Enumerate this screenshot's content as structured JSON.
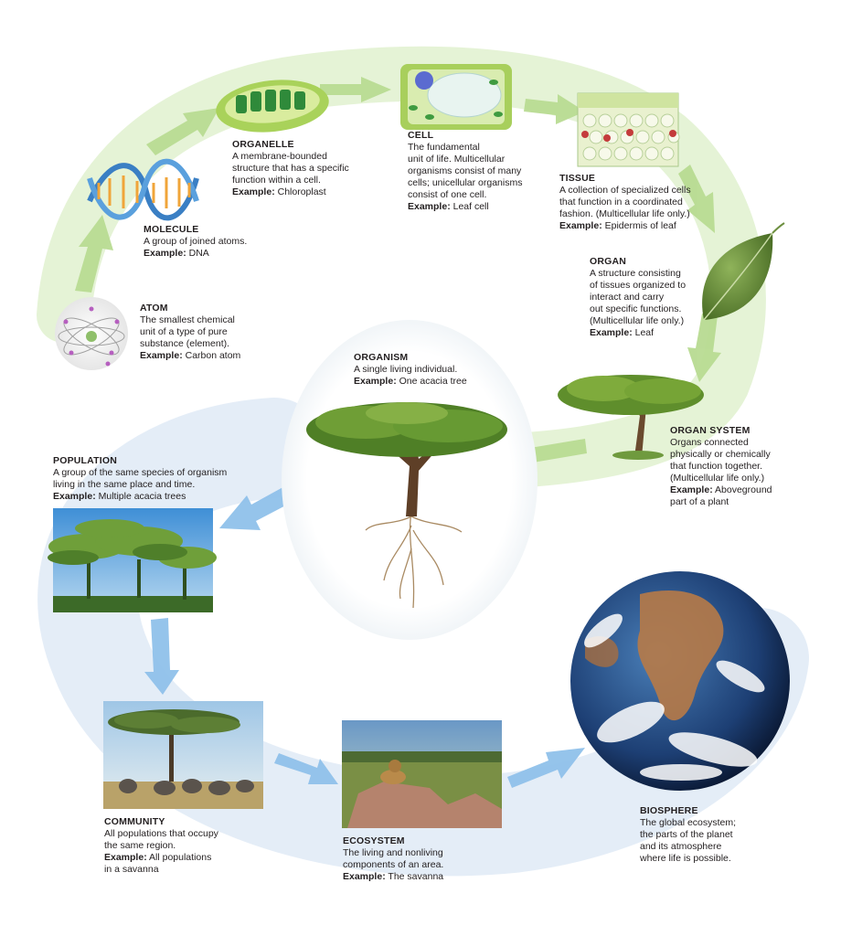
{
  "colors": {
    "green_band": "#cfe7b5",
    "green_arrow": "#b4d98d",
    "blue_band": "#d3e6f6",
    "blue_arrow": "#8fc0e8",
    "text": "#231f20"
  },
  "levels": [
    {
      "id": "atom",
      "title": "ATOM",
      "lines": [
        "The smallest chemical",
        "unit of a type of pure",
        "substance (element)."
      ],
      "example_label": "Example:",
      "example_lines": [
        "Carbon atom"
      ]
    },
    {
      "id": "molecule",
      "title": "MOLECULE",
      "lines": [
        "A group of joined atoms."
      ],
      "example_label": "Example:",
      "example_lines": [
        "DNA"
      ]
    },
    {
      "id": "organelle",
      "title": "ORGANELLE",
      "lines": [
        "A membrane-bounded",
        "structure that has a specific",
        "function within a cell."
      ],
      "example_label": "Example:",
      "example_lines": [
        "Chloroplast"
      ]
    },
    {
      "id": "cell",
      "title": "CELL",
      "lines": [
        "The fundamental",
        "unit of life. Multicellular",
        "organisms consist of many",
        "cells; unicellular organisms",
        "consist of one cell."
      ],
      "example_label": "Example:",
      "example_lines": [
        "Leaf cell"
      ]
    },
    {
      "id": "tissue",
      "title": "TISSUE",
      "lines": [
        "A collection of specialized cells",
        "that function in a coordinated",
        "fashion. (Multicellular life only.)"
      ],
      "example_label": "Example:",
      "example_lines": [
        "Epidermis of leaf"
      ]
    },
    {
      "id": "organ",
      "title": "ORGAN",
      "lines": [
        "A structure consisting",
        "of tissues organized to",
        "interact and carry",
        "out specific functions.",
        "(Multicellular life only.)"
      ],
      "example_label": "Example:",
      "example_lines": [
        "Leaf"
      ]
    },
    {
      "id": "organ_system",
      "title": "ORGAN SYSTEM",
      "lines": [
        "Organs connected",
        "physically or chemically",
        "that function together.",
        "(Multicellular life only.)"
      ],
      "example_label": "Example:",
      "example_lines": [
        "Aboveground",
        "part of a plant"
      ]
    },
    {
      "id": "organism",
      "title": "ORGANISM",
      "lines": [
        "A single living individual."
      ],
      "example_label": "Example:",
      "example_lines": [
        "One acacia tree"
      ]
    },
    {
      "id": "population",
      "title": "POPULATION",
      "lines": [
        "A group of the same species of organism",
        "living in the same place and time."
      ],
      "example_label": "Example:",
      "example_lines": [
        "Multiple acacia trees"
      ]
    },
    {
      "id": "community",
      "title": "COMMUNITY",
      "lines": [
        "All populations that occupy",
        "the same region."
      ],
      "example_label": "Example:",
      "example_lines": [
        "All populations",
        "in a savanna"
      ]
    },
    {
      "id": "ecosystem",
      "title": "ECOSYSTEM",
      "lines": [
        "The living and nonliving",
        "components of an area."
      ],
      "example_label": "Example:",
      "example_lines": [
        "The savanna"
      ]
    },
    {
      "id": "biosphere",
      "title": "BIOSPHERE",
      "lines": [
        "The global ecosystem;",
        "the parts of the planet",
        "and its atmosphere",
        "where life is possible."
      ],
      "example_label": "",
      "example_lines": []
    }
  ]
}
